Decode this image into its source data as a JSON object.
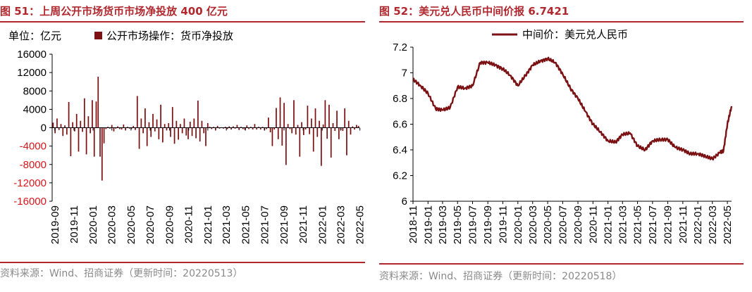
{
  "left": {
    "title": "图 51：上周公开市场货币市场净投放 400 亿元",
    "unit_label": "单位：亿元",
    "source": "资料来源：Wind、招商证券（更新时间：20220513）"
  },
  "right": {
    "title": "图 52：美元兑人民币中间价报 6.7421",
    "source": "资料来源：Wind、招商证券（更新时间：20220518）"
  },
  "colors": {
    "accent": "#b0282e",
    "series": "#7b1113",
    "negative_tick": "#d8161b",
    "source_text": "#8a8a8a"
  },
  "chart_data": [
    {
      "type": "bar",
      "title": "上周公开市场货币市场净投放 400 亿元",
      "ylabel": "亿元",
      "ylim": [
        -16000,
        16000
      ],
      "yticks": [
        16000,
        12000,
        8000,
        4000,
        0,
        -4000,
        -8000,
        -12000,
        -16000
      ],
      "xticks": [
        "2019-09",
        "2019-11",
        "2020-01",
        "2020-03",
        "2020-05",
        "2020-07",
        "2020-09",
        "2020-11",
        "2021-01",
        "2021-03",
        "2021-05",
        "2021-07",
        "2021-09",
        "2021-11",
        "2022-01",
        "2022-03",
        "2022-05"
      ],
      "x_start": "2019-09-06",
      "x_end": "2022-05-13",
      "grid": false,
      "legend_position": "top-left",
      "series": [
        {
          "name": "公开市场操作：货币净投放",
          "values": [
            1100,
            -1200,
            2000,
            -500,
            800,
            -1800,
            500,
            -1500,
            5600,
            -6200,
            1200,
            -800,
            3000,
            -5200,
            1500,
            -900,
            6400,
            -5800,
            2500,
            -1200,
            6000,
            -6300,
            5700,
            11100,
            -6300,
            -11500,
            -3400,
            -300,
            200,
            -200,
            600,
            -800,
            -200,
            300,
            -300,
            -400,
            700,
            -600,
            200,
            -200,
            -300,
            400,
            -500,
            6900,
            -4600,
            2000,
            -1200,
            4200,
            -4000,
            1200,
            -2000,
            3000,
            -800,
            1800,
            -2500,
            5000,
            -3200,
            800,
            -600,
            1000,
            -2000,
            4500,
            -3500,
            1500,
            -2600,
            800,
            -1200,
            2000,
            -1700,
            -2500,
            1300,
            -1800,
            2000,
            -2300,
            5900,
            -3000,
            1500,
            -1200,
            -4000,
            1000,
            200,
            -300,
            200,
            -600,
            400,
            -200,
            100,
            -200,
            200,
            -300,
            300,
            -400,
            300,
            -200,
            600,
            -500,
            200,
            -300,
            -500,
            500,
            -300,
            200,
            -400,
            800,
            -400,
            200,
            -400,
            200,
            -600,
            -300,
            2200,
            -1000,
            -4000,
            -400,
            4300,
            -2500,
            6600,
            -3900,
            5400,
            -8100,
            800,
            -300,
            -1200,
            6000,
            -1500,
            600,
            -6300,
            1200,
            -1600,
            -400,
            4800,
            -1400,
            2000,
            -5200,
            4200,
            -2000,
            1500,
            -8300,
            700,
            6000,
            -2400,
            5000,
            -6500,
            1000,
            -700,
            3700,
            -2500,
            -500,
            -700,
            4200,
            -6000,
            1500,
            -1500,
            300,
            -400,
            600,
            400
          ]
        }
      ]
    },
    {
      "type": "line",
      "title": "美元兑人民币中间价报 6.7421",
      "ylim": [
        6,
        7.2
      ],
      "yticks": [
        7.2,
        7,
        6.8,
        6.6,
        6.4,
        6.2,
        6
      ],
      "xticks": [
        "2018-11",
        "2019-01",
        "2019-03",
        "2019-05",
        "2019-07",
        "2019-09",
        "2019-11",
        "2020-01",
        "2020-03",
        "2020-05",
        "2020-07",
        "2020-09",
        "2020-11",
        "2021-01",
        "2021-03",
        "2021-05",
        "2021-07",
        "2021-09",
        "2021-11",
        "2022-01",
        "2022-03",
        "2022-05"
      ],
      "grid": false,
      "legend_position": "top-center",
      "series": [
        {
          "name": "中间价：美元兑人民币",
          "x": [
            "2018-11-01",
            "2018-12-01",
            "2019-01-01",
            "2019-02-01",
            "2019-03-01",
            "2019-04-01",
            "2019-05-01",
            "2019-06-01",
            "2019-07-01",
            "2019-08-01",
            "2019-09-01",
            "2019-10-01",
            "2019-11-01",
            "2019-12-01",
            "2020-01-01",
            "2020-02-01",
            "2020-03-01",
            "2020-04-01",
            "2020-05-01",
            "2020-06-01",
            "2020-07-01",
            "2020-08-01",
            "2020-09-01",
            "2020-10-01",
            "2020-11-01",
            "2020-12-01",
            "2021-01-01",
            "2021-02-01",
            "2021-03-01",
            "2021-04-01",
            "2021-05-01",
            "2021-06-01",
            "2021-07-01",
            "2021-08-01",
            "2021-09-01",
            "2021-10-01",
            "2021-11-01",
            "2021-12-01",
            "2022-01-01",
            "2022-02-01",
            "2022-03-01",
            "2022-04-01",
            "2022-04-15",
            "2022-05-01",
            "2022-05-18"
          ],
          "values": [
            6.95,
            6.9,
            6.84,
            6.72,
            6.71,
            6.73,
            6.89,
            6.88,
            6.9,
            7.08,
            7.08,
            7.06,
            7.03,
            6.98,
            6.9,
            6.98,
            7.06,
            7.09,
            7.11,
            7.08,
            6.99,
            6.88,
            6.8,
            6.7,
            6.6,
            6.54,
            6.47,
            6.46,
            6.52,
            6.53,
            6.43,
            6.4,
            6.47,
            6.48,
            6.48,
            6.42,
            6.4,
            6.37,
            6.37,
            6.35,
            6.33,
            6.38,
            6.39,
            6.6,
            6.74
          ]
        }
      ]
    }
  ]
}
